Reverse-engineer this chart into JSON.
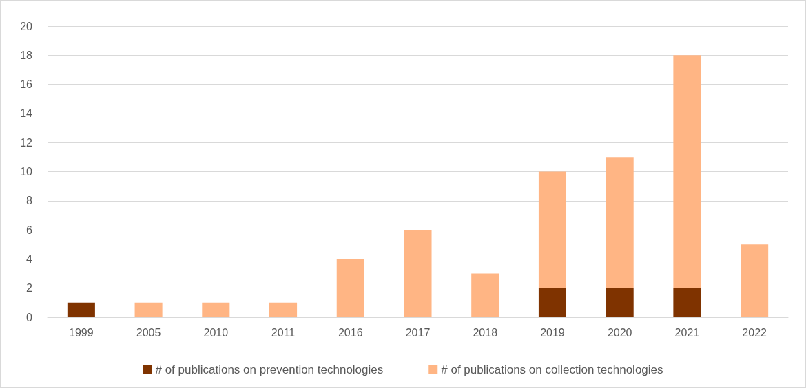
{
  "chart_data": {
    "type": "bar",
    "stacked": true,
    "categories": [
      "1999",
      "2005",
      "2010",
      "2011",
      "2016",
      "2017",
      "2018",
      "2019",
      "2020",
      "2021",
      "2022"
    ],
    "series": [
      {
        "name": "# of publications on prevention technologies",
        "color": "#7f3300",
        "values": [
          1,
          null,
          null,
          null,
          null,
          null,
          null,
          2,
          2,
          2,
          null
        ]
      },
      {
        "name": "# of publications on collection technologies",
        "color": "#ffb584",
        "values": [
          null,
          1,
          1,
          1,
          4,
          6,
          3,
          8,
          9,
          16,
          5
        ]
      }
    ],
    "ylim": [
      0,
      20
    ],
    "yticks": [
      0,
      2,
      4,
      6,
      8,
      10,
      12,
      14,
      16,
      18,
      20
    ],
    "grid": "y",
    "legend": "bottom"
  }
}
